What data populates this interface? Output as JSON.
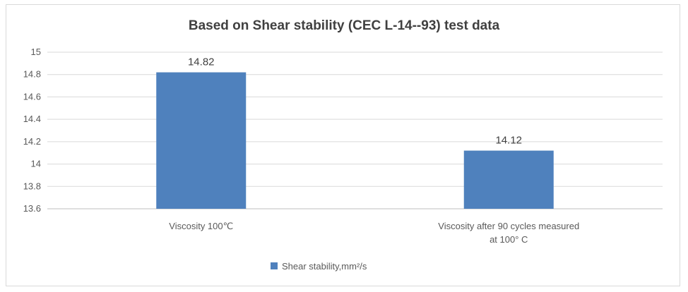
{
  "chart_data": {
    "type": "bar",
    "title": "Based on Shear stability (CEC L-14--93) test data",
    "categories": [
      [
        "Viscosity 100℃"
      ],
      [
        "Viscosity after 90 cycles measured",
        "at 100° C"
      ]
    ],
    "series": [
      {
        "name": "Shear stability,mm²/s",
        "values": [
          14.82,
          14.12
        ],
        "color": "#4f81bd"
      }
    ],
    "data_labels": [
      "14.82",
      "14.12"
    ],
    "ylim": [
      13.6,
      15
    ],
    "yticks": [
      "13.6",
      "13.8",
      "14",
      "14.2",
      "14.4",
      "14.6",
      "14.8",
      "15"
    ],
    "grid": true,
    "legend_position": "bottom"
  }
}
